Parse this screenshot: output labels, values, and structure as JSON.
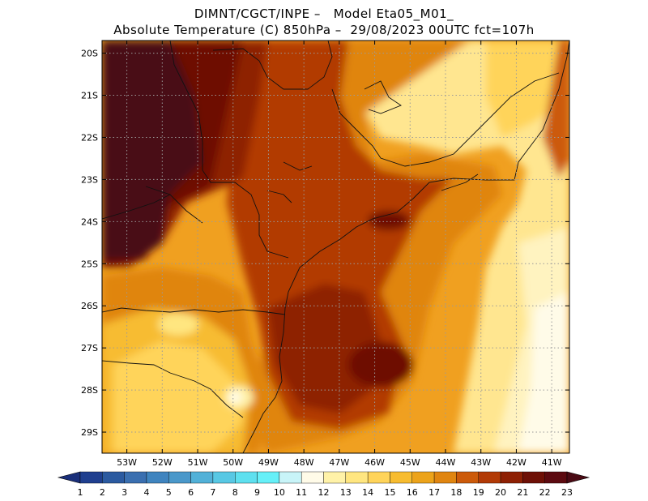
{
  "header": {
    "line1": "DIMNT/CGCT/INPE –   Model Eta05_M01_",
    "line2": "Absolute Temperature (C) 850hPa –  29/08/2023 00UTC fct=107h"
  },
  "map": {
    "lat_labels": [
      "20S",
      "21S",
      "22S",
      "23S",
      "24S",
      "25S",
      "26S",
      "27S",
      "28S",
      "29S"
    ],
    "lat_values": [
      -20,
      -21,
      -22,
      -23,
      -24,
      -25,
      -26,
      -27,
      -28,
      -29
    ],
    "lon_labels": [
      "53W",
      "52W",
      "51W",
      "50W",
      "49W",
      "48W",
      "47W",
      "46W",
      "45W",
      "44W",
      "43W",
      "42W",
      "41W"
    ],
    "lon_values": [
      -53,
      -52,
      -51,
      -50,
      -49,
      -48,
      -47,
      -46,
      -45,
      -44,
      -43,
      -42,
      -41
    ],
    "lon_range": [
      -53.7,
      -40.5
    ],
    "lat_range": [
      -29.5,
      -19.7
    ],
    "grid": "dotted"
  },
  "colorbar": {
    "labels": [
      "1",
      "2",
      "3",
      "4",
      "5",
      "6",
      "7",
      "8",
      "9",
      "10",
      "11",
      "12",
      "13",
      "14",
      "15",
      "16",
      "17",
      "18",
      "19",
      "20",
      "21",
      "22",
      "23"
    ],
    "colors": [
      "#1f3f8f",
      "#2b5aa0",
      "#3a6fb0",
      "#3f84bf",
      "#4a98ca",
      "#52b1d8",
      "#58c8e4",
      "#5ee0ef",
      "#66f0f8",
      "#c8f4f8",
      "#fffbe8",
      "#fff2a8",
      "#ffe680",
      "#ffd45a",
      "#f7bc30",
      "#eca31a",
      "#e08510",
      "#cc5a0a",
      "#b23a06",
      "#8e2004",
      "#6e1006",
      "#5c0a10"
    ],
    "min_color": "#1a2f7a",
    "max_color": "#4a0a14"
  }
}
